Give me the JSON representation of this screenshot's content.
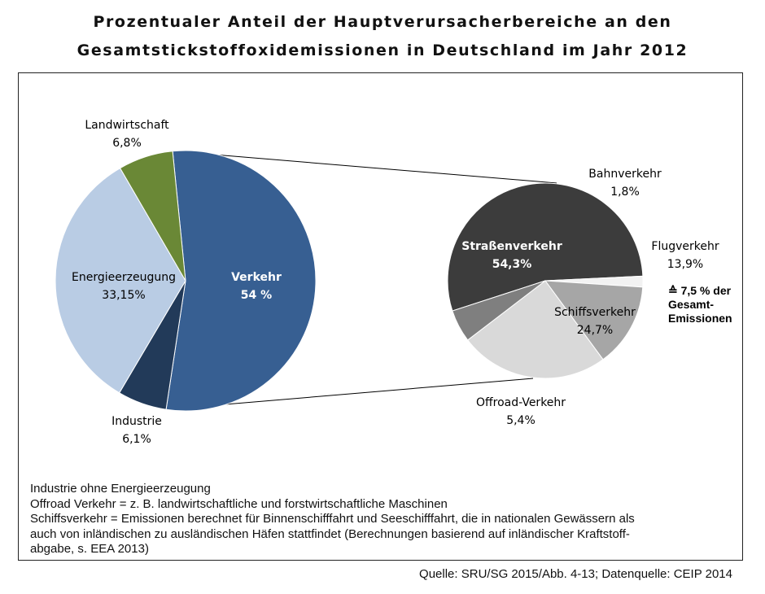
{
  "title": {
    "line1": "Prozentualer Anteil der Hauptverursacherbereiche an den",
    "line2": "Gesamtstickstoffoxidemissionen in Deutschland im Jahr 2012"
  },
  "chart_data": [
    {
      "type": "pie",
      "slices": [
        {
          "label": "Verkehr",
          "value": 54,
          "value_label": "54 %",
          "color": "#375f92"
        },
        {
          "label": "Industrie",
          "value": 6.1,
          "value_label": "6,1%",
          "color": "#223a59"
        },
        {
          "label": "Energieerzeugung",
          "value": 33.15,
          "value_label": "33,15%",
          "color": "#b9cce4"
        },
        {
          "label": "Landwirtschaft",
          "value": 6.8,
          "value_label": "6,8%",
          "color": "#6a8836"
        }
      ]
    },
    {
      "type": "pie",
      "breakdown_of": "Verkehr",
      "annotation": [
        "≙ 7,5 % der",
        "Gesamt-",
        "Emissionen"
      ],
      "slices": [
        {
          "label": "Straßenverkehr",
          "value": 54.3,
          "value_label": "54,3%",
          "color": "#3c3c3c"
        },
        {
          "label": "Bahnverkehr",
          "value": 1.8,
          "value_label": "1,8%",
          "color": "#f2f2f2"
        },
        {
          "label": "Flugverkehr",
          "value": 13.9,
          "value_label": "13,9%",
          "color": "#a6a6a6"
        },
        {
          "label": "Schiffsverkehr",
          "value": 24.7,
          "value_label": "24,7%",
          "color": "#d9d9d9"
        },
        {
          "label": "Offroad-Verkehr",
          "value": 5.4,
          "value_label": "5,4%",
          "color": "#7f7f7f"
        }
      ]
    }
  ],
  "notes": [
    "Industrie ohne Energieerzeugung",
    "Offroad Verkehr = z. B. landwirtschaftliche und forstwirtschaftliche Maschinen",
    "Schiffsverkehr = Emissionen berechnet für Binnenschifffahrt und Seeschifffahrt, die in nationalen Gewässern als",
    "auch von inländischen zu ausländischen Häfen stattfindet (Berechnungen basierend auf inländischer Kraftstoff-",
    "abgabe, s. EEA 2013)"
  ],
  "source": "Quelle:  SRU/SG 2015/Abb. 4-13; Datenquelle: CEIP 2014"
}
